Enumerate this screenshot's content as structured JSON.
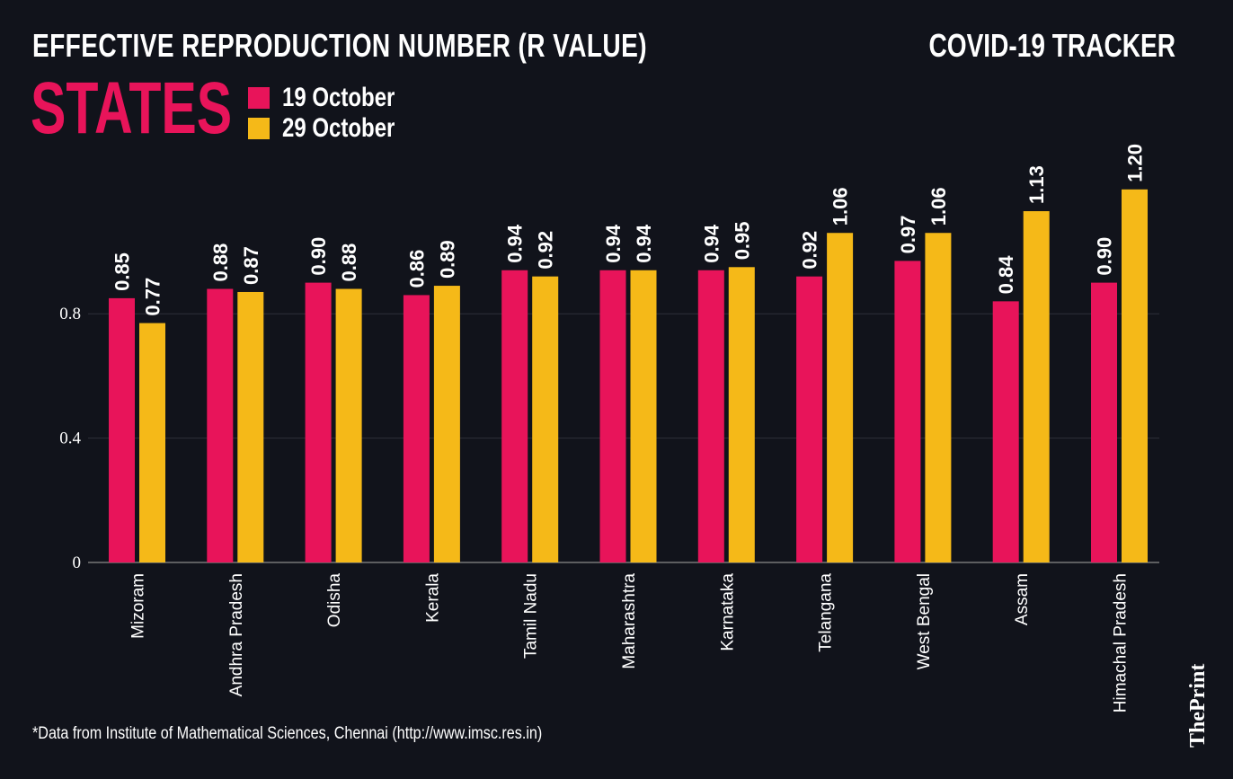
{
  "header": {
    "title": "EFFECTIVE REPRODUCTION NUMBER (R VALUE)",
    "tracker": "COVID-19 TRACKER",
    "subtitle": "STATES"
  },
  "footnote": "*Data from Institute of Mathematical Sciences, Chennai (http://www.imsc.res.in)",
  "logo": "ThePrint",
  "chart_data": {
    "type": "bar",
    "title": "EFFECTIVE REPRODUCTION NUMBER (R VALUE)",
    "categories": [
      "Mizoram",
      "Andhra Pradesh",
      "Odisha",
      "Kerala",
      "Tamil Nadu",
      "Maharashtra",
      "Karnataka",
      "Telangana",
      "West Bengal",
      "Assam",
      "Himachal Pradesh"
    ],
    "series": [
      {
        "name": "19 October",
        "color": "#e8145a",
        "values": [
          0.85,
          0.88,
          0.9,
          0.86,
          0.94,
          0.94,
          0.94,
          0.92,
          0.97,
          0.84,
          0.9
        ]
      },
      {
        "name": "29 October",
        "color": "#f5b918",
        "values": [
          0.77,
          0.87,
          0.88,
          0.89,
          0.92,
          0.94,
          0.95,
          1.06,
          1.06,
          1.13,
          1.2
        ]
      }
    ],
    "yticks": [
      "0",
      "0.4",
      "0.8"
    ],
    "ylim": [
      0,
      1.3
    ],
    "grid": true,
    "legend": "top-left"
  }
}
